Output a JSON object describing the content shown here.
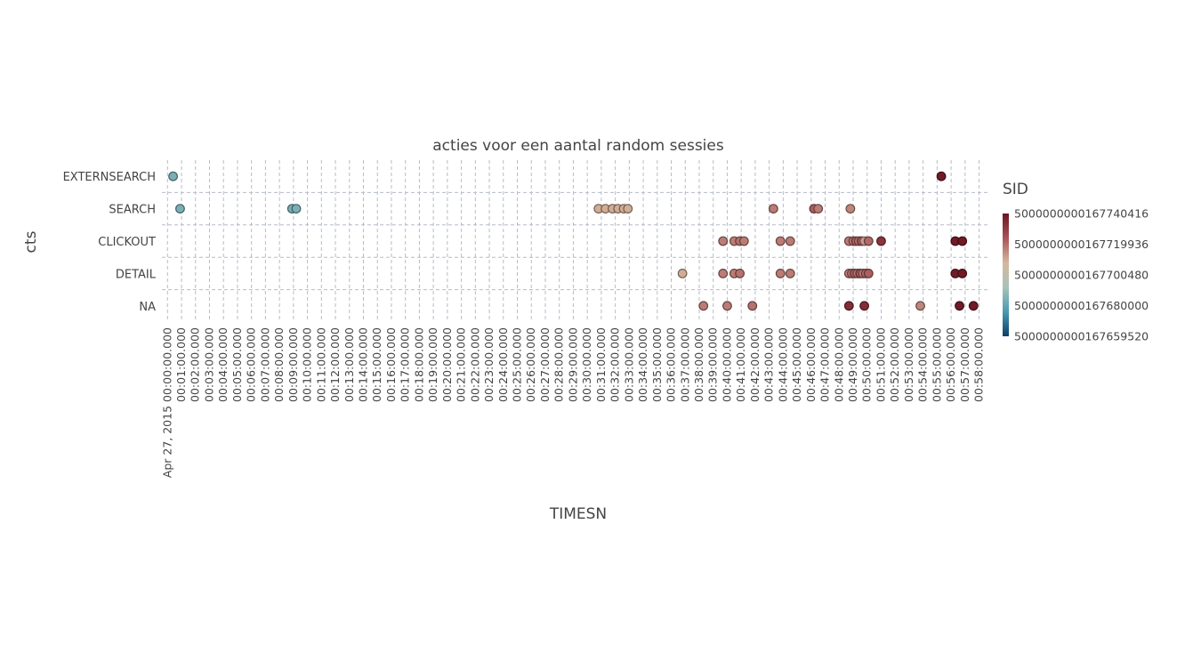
{
  "chart_data": {
    "type": "scatter",
    "title": "acties voor een aantal random sessies",
    "xlabel": "TIMESN",
    "ylabel": "cts",
    "categories": [
      "EXTERNSEARCH",
      "SEARCH",
      "CLICKOUT",
      "DETAIL",
      "NA"
    ],
    "x_date_prefix": "Apr 27, 2015",
    "x_tick_labels": [
      "Apr 27, 2015 00:00:00.000",
      "00:01:00.000",
      "00:02:00.000",
      "00:03:00.000",
      "00:04:00.000",
      "00:05:00.000",
      "00:06:00.000",
      "00:07:00.000",
      "00:08:00.000",
      "00:09:00.000",
      "00:10:00.000",
      "00:11:00.000",
      "00:12:00.000",
      "00:13:00.000",
      "00:14:00.000",
      "00:15:00.000",
      "00:16:00.000",
      "00:17:00.000",
      "00:18:00.000",
      "00:19:00.000",
      "00:20:00.000",
      "00:21:00.000",
      "00:22:00.000",
      "00:23:00.000",
      "00:24:00.000",
      "00:25:00.000",
      "00:26:00.000",
      "00:27:00.000",
      "00:28:00.000",
      "00:29:00.000",
      "00:30:00.000",
      "00:31:00.000",
      "00:32:00.000",
      "00:33:00.000",
      "00:34:00.000",
      "00:35:00.000",
      "00:36:00.000",
      "00:37:00.000",
      "00:38:00.000",
      "00:39:00.000",
      "00:40:00.000",
      "00:41:00.000",
      "00:42:00.000",
      "00:43:00.000",
      "00:44:00.000",
      "00:45:00.000",
      "00:46:00.000",
      "00:47:00.000",
      "00:48:00.000",
      "00:49:00.000",
      "00:50:00.000",
      "00:51:00.000",
      "00:52:00.000",
      "00:53:00.000",
      "00:54:00.000",
      "00:55:00.000",
      "00:56:00.000",
      "00:57:00.000",
      "00:58:00.000"
    ],
    "xlim_minutes": [
      -0.4,
      58.6
    ],
    "grid": true,
    "colorbar": {
      "title": "SID",
      "tick_labels": [
        "5000000000167740416",
        "5000000000167719936",
        "5000000000167700480",
        "5000000000167680000",
        "5000000000167659520"
      ],
      "colors": [
        "#6b1420",
        "#a8545a",
        "#d6b79c",
        "#a9c3ba",
        "#4a9ab0",
        "#0e3f6a"
      ]
    },
    "points": [
      {
        "cat": "EXTERNSEARCH",
        "t": "00:00:24",
        "c": 0.3
      },
      {
        "cat": "EXTERNSEARCH",
        "t": "00:55:18",
        "c": 0.98
      },
      {
        "cat": "SEARCH",
        "t": "00:00:54",
        "c": 0.3
      },
      {
        "cat": "SEARCH",
        "t": "00:08:54",
        "c": 0.3
      },
      {
        "cat": "SEARCH",
        "t": "00:09:12",
        "c": 0.3
      },
      {
        "cat": "SEARCH",
        "t": "00:30:48",
        "c": 0.62
      },
      {
        "cat": "SEARCH",
        "t": "00:31:18",
        "c": 0.62
      },
      {
        "cat": "SEARCH",
        "t": "00:31:48",
        "c": 0.62
      },
      {
        "cat": "SEARCH",
        "t": "00:32:12",
        "c": 0.62
      },
      {
        "cat": "SEARCH",
        "t": "00:32:36",
        "c": 0.62
      },
      {
        "cat": "SEARCH",
        "t": "00:32:54",
        "c": 0.62
      },
      {
        "cat": "SEARCH",
        "t": "00:43:18",
        "c": 0.72
      },
      {
        "cat": "SEARCH",
        "t": "00:46:12",
        "c": 0.78
      },
      {
        "cat": "SEARCH",
        "t": "00:46:30",
        "c": 0.72
      },
      {
        "cat": "SEARCH",
        "t": "00:48:48",
        "c": 0.7
      },
      {
        "cat": "CLICKOUT",
        "t": "00:39:42",
        "c": 0.72
      },
      {
        "cat": "CLICKOUT",
        "t": "00:40:30",
        "c": 0.72
      },
      {
        "cat": "CLICKOUT",
        "t": "00:40:54",
        "c": 0.74
      },
      {
        "cat": "CLICKOUT",
        "t": "00:41:12",
        "c": 0.72
      },
      {
        "cat": "CLICKOUT",
        "t": "00:43:48",
        "c": 0.72
      },
      {
        "cat": "CLICKOUT",
        "t": "00:44:30",
        "c": 0.72
      },
      {
        "cat": "CLICKOUT",
        "t": "00:48:42",
        "c": 0.72
      },
      {
        "cat": "CLICKOUT",
        "t": "00:49:00",
        "c": 0.74
      },
      {
        "cat": "CLICKOUT",
        "t": "00:49:12",
        "c": 0.78
      },
      {
        "cat": "CLICKOUT",
        "t": "00:49:24",
        "c": 0.74
      },
      {
        "cat": "CLICKOUT",
        "t": "00:49:36",
        "c": 0.8
      },
      {
        "cat": "CLICKOUT",
        "t": "00:49:48",
        "c": 0.66
      },
      {
        "cat": "CLICKOUT",
        "t": "00:50:06",
        "c": 0.76
      },
      {
        "cat": "CLICKOUT",
        "t": "00:51:00",
        "c": 0.9
      },
      {
        "cat": "CLICKOUT",
        "t": "00:56:18",
        "c": 0.98
      },
      {
        "cat": "CLICKOUT",
        "t": "00:56:48",
        "c": 0.98
      },
      {
        "cat": "DETAIL",
        "t": "00:36:48",
        "c": 0.62
      },
      {
        "cat": "DETAIL",
        "t": "00:39:42",
        "c": 0.72
      },
      {
        "cat": "DETAIL",
        "t": "00:40:30",
        "c": 0.72
      },
      {
        "cat": "DETAIL",
        "t": "00:40:54",
        "c": 0.74
      },
      {
        "cat": "DETAIL",
        "t": "00:43:48",
        "c": 0.72
      },
      {
        "cat": "DETAIL",
        "t": "00:44:30",
        "c": 0.72
      },
      {
        "cat": "DETAIL",
        "t": "00:48:42",
        "c": 0.72
      },
      {
        "cat": "DETAIL",
        "t": "00:48:54",
        "c": 0.74
      },
      {
        "cat": "DETAIL",
        "t": "00:49:06",
        "c": 0.78
      },
      {
        "cat": "DETAIL",
        "t": "00:49:18",
        "c": 0.74
      },
      {
        "cat": "DETAIL",
        "t": "00:49:30",
        "c": 0.8
      },
      {
        "cat": "DETAIL",
        "t": "00:49:42",
        "c": 0.72
      },
      {
        "cat": "DETAIL",
        "t": "00:49:54",
        "c": 0.76
      },
      {
        "cat": "DETAIL",
        "t": "00:50:06",
        "c": 0.78
      },
      {
        "cat": "DETAIL",
        "t": "00:56:18",
        "c": 0.98
      },
      {
        "cat": "DETAIL",
        "t": "00:56:48",
        "c": 0.98
      },
      {
        "cat": "NA",
        "t": "00:38:18",
        "c": 0.72
      },
      {
        "cat": "NA",
        "t": "00:40:00",
        "c": 0.72
      },
      {
        "cat": "NA",
        "t": "00:41:48",
        "c": 0.74
      },
      {
        "cat": "NA",
        "t": "00:48:42",
        "c": 0.92
      },
      {
        "cat": "NA",
        "t": "00:49:48",
        "c": 0.92
      },
      {
        "cat": "NA",
        "t": "00:53:48",
        "c": 0.7
      },
      {
        "cat": "NA",
        "t": "00:56:36",
        "c": 0.98
      },
      {
        "cat": "NA",
        "t": "00:57:36",
        "c": 0.98
      }
    ]
  }
}
